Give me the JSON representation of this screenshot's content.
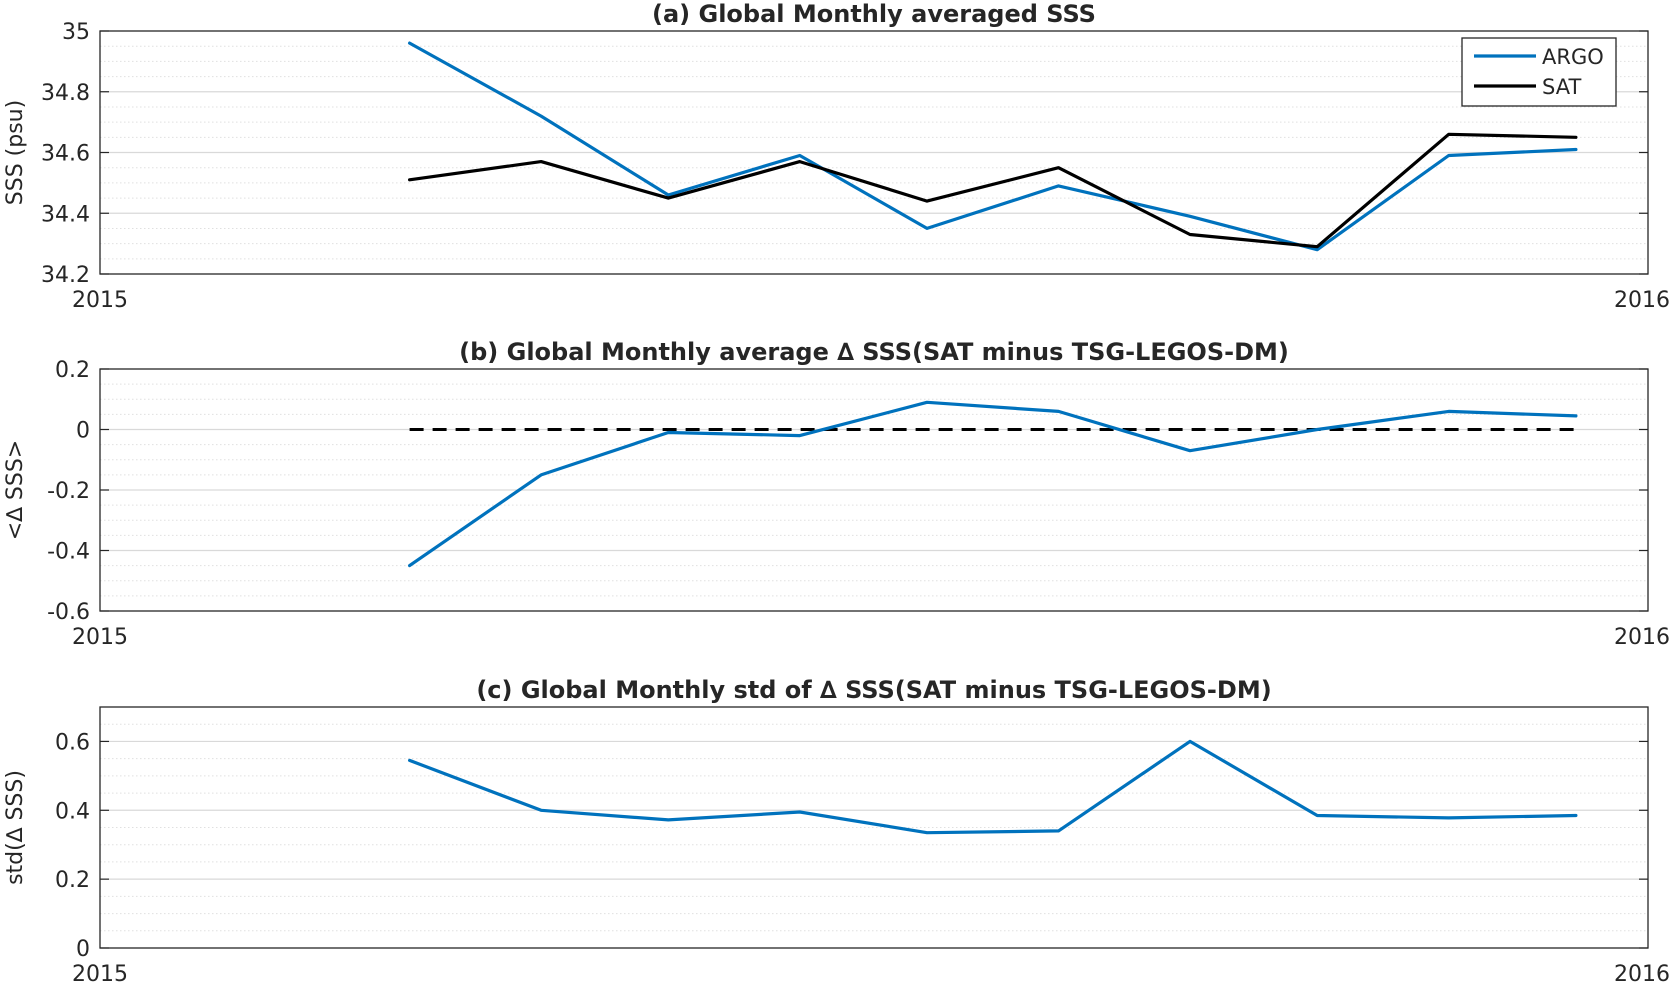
{
  "colors": {
    "argo": "#0072BD",
    "sat": "#000000",
    "axis": "#262626",
    "grid": "#d9d9d9"
  },
  "chart_data": [
    {
      "type": "line",
      "title": "(a) Global Monthly averaged SSS",
      "xlabel": "",
      "ylabel": "SSS (psu)",
      "x_range": [
        "2015-01-01",
        "2016-01-01"
      ],
      "x_tick_labels": [
        "2015",
        "2016"
      ],
      "ylim": [
        34.2,
        35
      ],
      "y_ticks": [
        34.2,
        34.4,
        34.6,
        34.8,
        35
      ],
      "y_tick_labels": [
        "34.2",
        "34.4",
        "34.6",
        "34.8",
        "35"
      ],
      "grid": "on",
      "minor_grid": "on",
      "legend": "top-right",
      "x": [
        "2015-03-15",
        "2015-04-15",
        "2015-05-15",
        "2015-06-15",
        "2015-07-15",
        "2015-08-15",
        "2015-09-15",
        "2015-10-15",
        "2015-11-15",
        "2015-12-15"
      ],
      "series": [
        {
          "name": "ARGO",
          "color": "#0072BD",
          "values": [
            34.96,
            34.72,
            34.46,
            34.59,
            34.35,
            34.49,
            34.39,
            34.28,
            34.59,
            34.61
          ]
        },
        {
          "name": "SAT",
          "color": "#000000",
          "values": [
            34.51,
            34.57,
            34.45,
            34.57,
            34.44,
            34.55,
            34.33,
            34.29,
            34.66,
            34.65
          ]
        }
      ]
    },
    {
      "type": "line",
      "title": "(b) Global Monthly average ∆ SSS(SAT minus TSG-LEGOS-DM)",
      "xlabel": "",
      "ylabel": "<∆ SSS>",
      "x_range": [
        "2015-01-01",
        "2016-01-01"
      ],
      "x_tick_labels": [
        "2015",
        "2016"
      ],
      "ylim": [
        -0.6,
        0.2
      ],
      "y_ticks": [
        -0.6,
        -0.4,
        -0.2,
        0,
        0.2
      ],
      "y_tick_labels": [
        "-0.6",
        "-0.4",
        "-0.2",
        "0",
        "0.2"
      ],
      "grid": "on",
      "minor_grid": "on",
      "reference_line": {
        "y": 0,
        "style": "dashed",
        "color": "#000000"
      },
      "x": [
        "2015-03-15",
        "2015-04-15",
        "2015-05-15",
        "2015-06-15",
        "2015-07-15",
        "2015-08-15",
        "2015-09-15",
        "2015-10-15",
        "2015-11-15",
        "2015-12-15"
      ],
      "series": [
        {
          "color": "#0072BD",
          "values": [
            -0.45,
            -0.15,
            -0.01,
            -0.02,
            0.09,
            0.06,
            -0.07,
            0.0,
            0.06,
            0.045
          ]
        }
      ]
    },
    {
      "type": "line",
      "title": "(c) Global Monthly std of ∆ SSS(SAT minus TSG-LEGOS-DM)",
      "xlabel": "",
      "ylabel": "std(∆ SSS)",
      "x_range": [
        "2015-01-01",
        "2016-01-01"
      ],
      "x_tick_labels": [
        "2015",
        "2016"
      ],
      "ylim": [
        0,
        0.7
      ],
      "y_ticks": [
        0,
        0.2,
        0.4,
        0.6
      ],
      "y_tick_labels": [
        "0",
        "0.2",
        "0.4",
        "0.6"
      ],
      "grid": "on",
      "minor_grid": "on",
      "x": [
        "2015-03-15",
        "2015-04-15",
        "2015-05-15",
        "2015-06-15",
        "2015-07-15",
        "2015-08-15",
        "2015-09-15",
        "2015-10-15",
        "2015-11-15",
        "2015-12-15"
      ],
      "series": [
        {
          "color": "#0072BD",
          "values": [
            0.545,
            0.4,
            0.372,
            0.395,
            0.335,
            0.34,
            0.6,
            0.385,
            0.378,
            0.385
          ]
        }
      ]
    }
  ]
}
